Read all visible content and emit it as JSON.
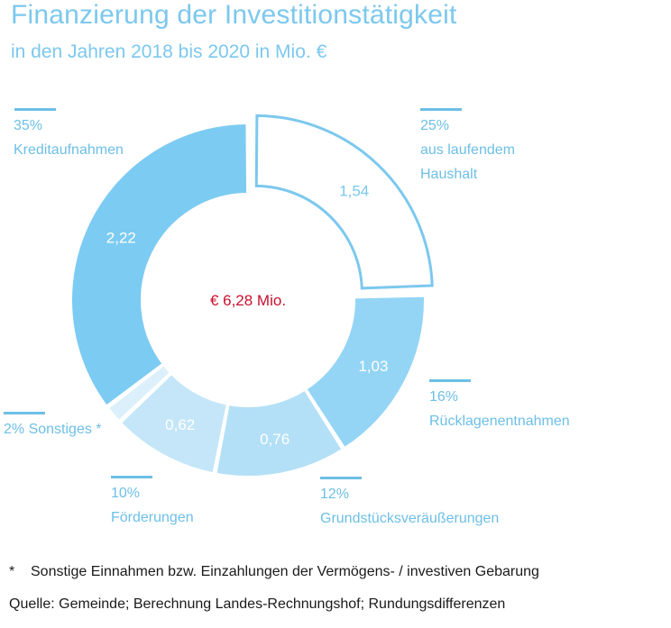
{
  "title": "Finanzierung der Investitionstätigkeit",
  "subtitle": "in den Jahren 2018 bis 2020 in Mio. €",
  "colors": {
    "title": "#7cc8ee",
    "label": "#6dbfe6",
    "center": "#c8102e",
    "text": "#1a1a1a"
  },
  "chart_data": {
    "type": "pie",
    "variant": "donut",
    "center_label": "€ 6,28 Mio.",
    "unit": "Mio. €",
    "slices": [
      {
        "name": "aus laufendem Haushalt",
        "value": 1.54,
        "value_label": "1,54",
        "percent_label": "25%",
        "label_lines": [
          "aus laufendem",
          "Haushalt"
        ],
        "color": "#ffffff",
        "stroke": "#7cc8ee",
        "exploded": true,
        "value_color": "#7cc8ee"
      },
      {
        "name": "Rücklagenentnahmen",
        "value": 1.03,
        "value_label": "1,03",
        "percent_label": "16%",
        "label_lines": [
          "Rücklagenentnahmen"
        ],
        "color": "#94d5f5",
        "stroke": "none",
        "exploded": false,
        "value_color": "#ffffff"
      },
      {
        "name": "Grundstücksveräußerungen",
        "value": 0.76,
        "value_label": "0,76",
        "percent_label": "12%",
        "label_lines": [
          "Grundstücksveräußerungen"
        ],
        "color": "#b3e0f7",
        "stroke": "none",
        "exploded": false,
        "value_color": "#ffffff"
      },
      {
        "name": "Förderungen",
        "value": 0.62,
        "value_label": "0,62",
        "percent_label": "10%",
        "label_lines": [
          "Förderungen"
        ],
        "color": "#c4e6f8",
        "stroke": "none",
        "exploded": false,
        "value_color": "#ffffff"
      },
      {
        "name": "Sonstiges",
        "value": 0.11,
        "value_label": "",
        "percent_label": "2%",
        "label_lines": [
          "Sonstiges *"
        ],
        "color": "#dcf0fb",
        "stroke": "none",
        "exploded": false,
        "value_color": "#ffffff"
      },
      {
        "name": "Kreditaufnahmen",
        "value": 2.22,
        "value_label": "2,22",
        "percent_label": "35%",
        "label_lines": [
          "Kreditaufnahmen"
        ],
        "color": "#7ccbf2",
        "stroke": "none",
        "exploded": false,
        "value_color": "#ffffff"
      }
    ]
  },
  "labels": {
    "kredit": {
      "percent": "35%",
      "name": "Kreditaufnahmen"
    },
    "haushalt": {
      "percent": "25%",
      "line1": "aus laufendem",
      "line2": "Haushalt"
    },
    "ruecklagen": {
      "percent": "16%",
      "name": "Rücklagenentnahmen"
    },
    "grund": {
      "percent": "12%",
      "name": "Grundstücksveräußerungen"
    },
    "foerder": {
      "percent": "10%",
      "name": "Förderungen"
    },
    "sonst": {
      "text": "2% Sonstiges *"
    }
  },
  "footnote": {
    "marker": "*",
    "text": "Sonstige Einnahmen bzw. Einzahlungen der Vermögens- / investiven Gebarung"
  },
  "source": "Quelle: Gemeinde; Berechnung Landes-Rechnungshof; Rundungsdifferenzen"
}
